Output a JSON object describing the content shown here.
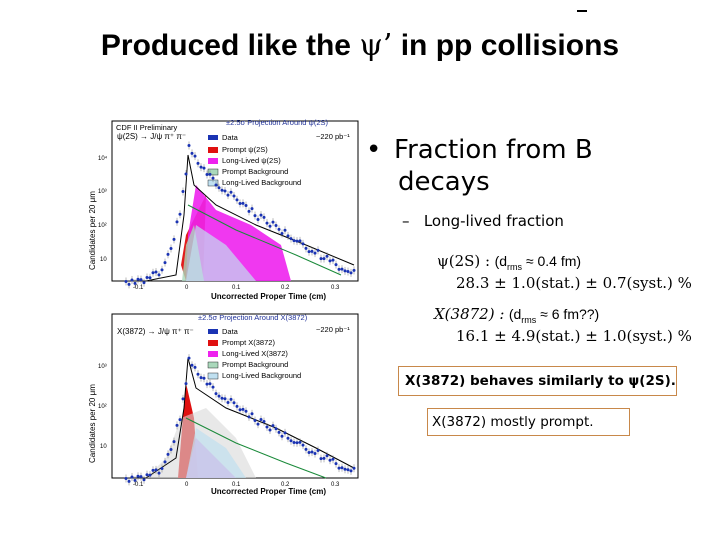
{
  "title": {
    "prefix": "Produced like the ",
    "psi": "ψ’",
    "suffix": " in pp collisions"
  },
  "bullet": {
    "marker": "•",
    "line1": "Fraction from B",
    "line2": "decays"
  },
  "subbullet": {
    "dash": "–",
    "text": "Long-lived fraction"
  },
  "psi2s": {
    "label": "ψ(2S) :",
    "note": "(d",
    "note_sub": "rms",
    "note_rest": " ≈ 0.4 fm)",
    "value": "28.3 ± 1.0(stat.) ± 0.7(syst.) %"
  },
  "x3872": {
    "label": "X(3872) :",
    "note": "(d",
    "note_sub": "rms",
    "note_rest": " ≈ 6 fm??)",
    "value": "16.1 ± 4.9(stat.) ± 1.0(syst.) %"
  },
  "box1": "X(3872) behaves similarly to ψ(2S).",
  "box2": "X(3872) mostly prompt.",
  "plots": [
    {
      "corner": "CDF II Preliminary",
      "projection": "±2.5σ Projection Around ψ(2S)",
      "decay": "ψ(2S) → J/ψ π⁺ π⁻",
      "lumi": "~220 pb⁻¹",
      "legend": [
        "Data",
        "Prompt ψ(2S)",
        "Long-Lived ψ(2S)",
        "Prompt Background",
        "Long-Lived Background"
      ],
      "ylabel": "Candidates per 20 μm",
      "xlabel": "Uncorrected Proper Time (cm)",
      "yticks": [
        "10⁴",
        "10³",
        "10²",
        "10"
      ],
      "xticks": [
        "-0.1",
        "0",
        "0.1",
        "0.2",
        "0.3"
      ]
    },
    {
      "corner": "",
      "projection": "±2.5σ Projection Around X(3872)",
      "decay": "X(3872) → J/ψ π⁺ π⁻",
      "lumi": "~220 pb⁻¹",
      "legend": [
        "Data",
        "Prompt X(3872)",
        "Long-Lived X(3872)",
        "Prompt Background",
        "Long-Lived Background"
      ],
      "ylabel": "Candidates per 20 μm",
      "xlabel": "Uncorrected Proper Time (cm)",
      "yticks": [
        "10³",
        "10²",
        "10"
      ],
      "xticks": [
        "-0.1",
        "0",
        "0.1",
        "0.2",
        "0.3"
      ]
    }
  ],
  "colors": {
    "data": "#1a33b3",
    "prompt": "#e01010",
    "longlived": "#ee22ee",
    "promptbkg": "#aad8bb",
    "llbkg": "#c0e0f0"
  }
}
